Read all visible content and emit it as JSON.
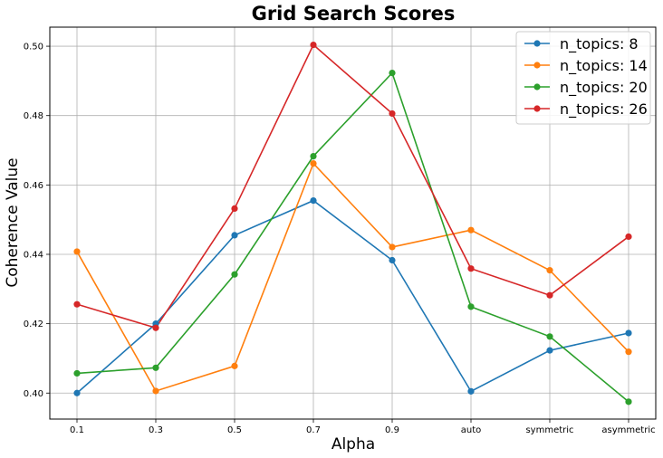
{
  "chart_data": {
    "type": "line",
    "title": "Grid Search Scores",
    "xlabel": "Alpha",
    "ylabel": "Coherence Value",
    "categories": [
      "0.1",
      "0.3",
      "0.5",
      "0.7",
      "0.9",
      "auto",
      "symmetric",
      "asymmetric"
    ],
    "ylim": [
      0.3925,
      0.5055
    ],
    "yticks": [
      0.4,
      0.42,
      0.44,
      0.46,
      0.48,
      0.5
    ],
    "ytick_labels": [
      "0.40",
      "0.42",
      "0.44",
      "0.46",
      "0.48",
      "0.50"
    ],
    "grid": true,
    "legend_position": "top-right",
    "series": [
      {
        "name": "n_topics: 8",
        "color": "#1f77b4",
        "values": [
          0.4,
          0.42,
          0.4455,
          0.4555,
          0.4383,
          0.4005,
          0.4123,
          0.4173
        ]
      },
      {
        "name": "n_topics: 14",
        "color": "#ff7f0e",
        "values": [
          0.4408,
          0.4006,
          0.4078,
          0.4662,
          0.4421,
          0.447,
          0.4354,
          0.4119
        ]
      },
      {
        "name": "n_topics: 20",
        "color": "#2ca02c",
        "values": [
          0.4057,
          0.4073,
          0.4342,
          0.4683,
          0.4923,
          0.4249,
          0.4163,
          0.3975
        ]
      },
      {
        "name": "n_topics: 26",
        "color": "#d62728",
        "values": [
          0.4256,
          0.4188,
          0.4532,
          0.5004,
          0.4806,
          0.4359,
          0.4282,
          0.4451
        ]
      }
    ]
  }
}
